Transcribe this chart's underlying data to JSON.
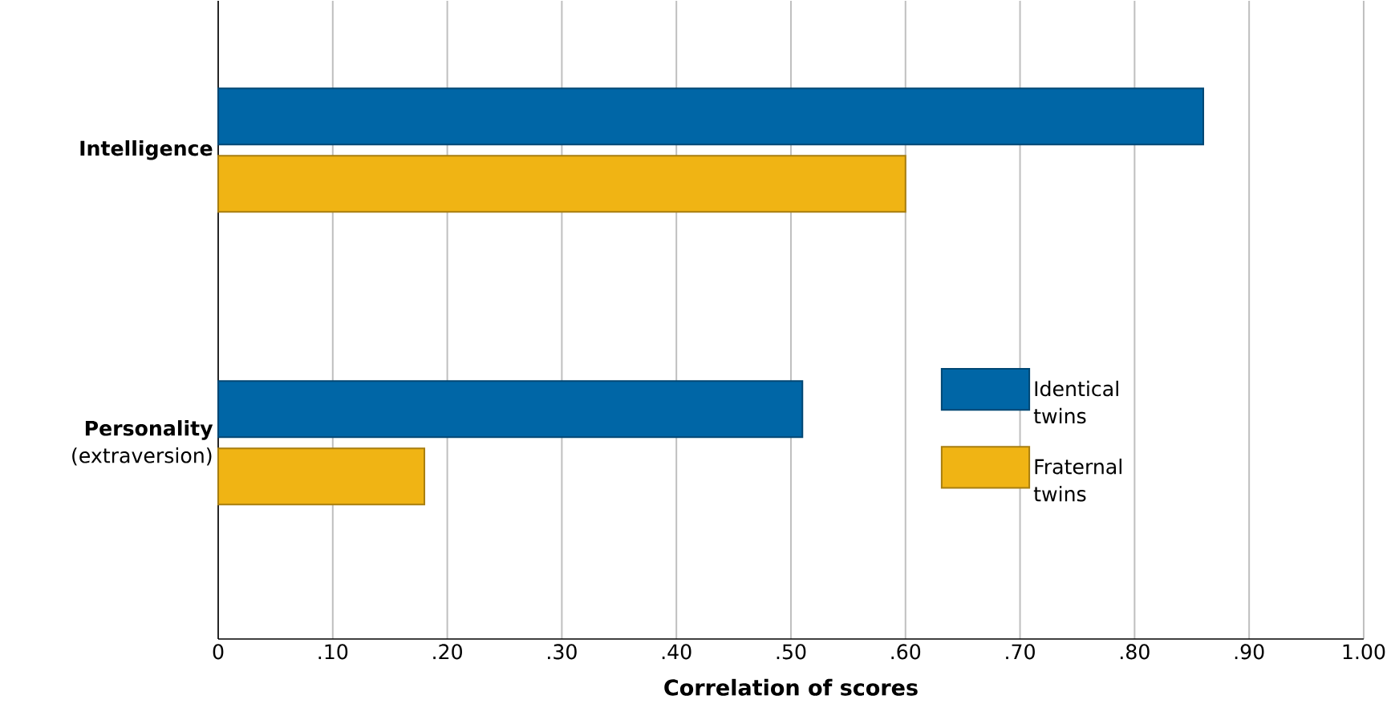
{
  "chart_data": {
    "type": "bar",
    "orientation": "horizontal",
    "xlabel": "Correlation of scores",
    "categories": [
      "**Intelligence**",
      "**Personality** (extraversion)"
    ],
    "series": [
      {
        "name": "Identical twins",
        "color": "#0066a6",
        "values": [
          0.86,
          0.51
        ]
      },
      {
        "name": "Fraternal twins",
        "color": "#f0b414",
        "values": [
          0.6,
          0.18
        ]
      }
    ],
    "xlim": [
      0,
      1
    ],
    "xticks": [
      {
        "value": 0,
        "label": "0"
      },
      {
        "value": 0.1,
        "label": ".10"
      },
      {
        "value": 0.2,
        "label": ".20"
      },
      {
        "value": 0.3,
        "label": ".30"
      },
      {
        "value": 0.4,
        "label": ".40"
      },
      {
        "value": 0.5,
        "label": ".50"
      },
      {
        "value": 0.6,
        "label": ".60"
      },
      {
        "value": 0.7,
        "label": ".70"
      },
      {
        "value": 0.8,
        "label": ".80"
      },
      {
        "value": 0.9,
        "label": ".90"
      },
      {
        "value": 1,
        "label": "1.00"
      }
    ],
    "grid": "x",
    "legend": "right"
  }
}
